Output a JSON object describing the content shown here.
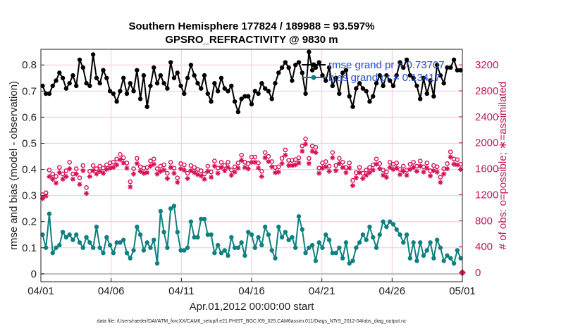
{
  "chart_data": {
    "type": "line",
    "title": [
      "Southern Hemisphere 177824 / 189988 = 93.597%",
      "GPSRO_REFRACTIVITY @ 9830 m"
    ],
    "xlabel": "Apr.01,2012 00:00:00 start",
    "ylabel": "rmse and bias (model - observation)",
    "y2label": "# of obs: o=possible; ∗=assimilated",
    "footnote": "data file: /Users/raeder/DAI/ATM_forcXX/CAM6_setup/f.e21.FHIST_BGC.f09_025.CAM6assim.011/Diags_NTrS_2012-04/obs_diag_output.nc",
    "x_range": [
      0,
      30
    ],
    "x_ticks": [
      0,
      5,
      10,
      15,
      20,
      25,
      30
    ],
    "x_tick_labels": [
      "04/01",
      "04/06",
      "04/11",
      "04/16",
      "04/21",
      "04/26",
      "05/01"
    ],
    "ylim": [
      -0.03,
      0.86
    ],
    "y_ticks": [
      0,
      0.1,
      0.2,
      0.3,
      0.4,
      0.5,
      0.6,
      0.7,
      0.8
    ],
    "y_tick_labels": [
      "0",
      "0.1",
      "0.2",
      "0.3",
      "0.4",
      "0.5",
      "0.6",
      "0.7",
      "0.8"
    ],
    "y2lim": [
      -140,
      3440
    ],
    "y2_ticks": [
      0,
      400,
      800,
      1200,
      1600,
      2000,
      2400,
      2800,
      3200
    ],
    "y2_tick_labels": [
      "0",
      "400",
      "800",
      "1200",
      "1600",
      "2000",
      "2400",
      "2800",
      "3200"
    ],
    "grid": true,
    "legend": {
      "position": "top-right",
      "entries": [
        "rmse grand pr = 0.73707",
        "bias grand pr = 0.13417"
      ]
    },
    "colors": {
      "rmse": "#000000",
      "bias": "#0f8080",
      "obs": "#d6105a",
      "grid": "#f2c8d8",
      "zero": "#bbbbbb"
    },
    "series": [
      {
        "name": "rmse",
        "axis": "left",
        "values": [
          0.72,
          0.69,
          0.69,
          0.72,
          0.74,
          0.77,
          0.75,
          0.71,
          0.73,
          0.76,
          0.72,
          0.82,
          0.79,
          0.73,
          0.72,
          0.84,
          0.75,
          0.73,
          0.78,
          0.75,
          0.7,
          0.69,
          0.66,
          0.7,
          0.75,
          0.69,
          0.73,
          0.7,
          0.78,
          0.67,
          0.76,
          0.64,
          0.72,
          0.79,
          0.73,
          0.76,
          0.73,
          0.71,
          0.81,
          0.75,
          0.77,
          0.72,
          0.69,
          0.75,
          0.8,
          0.76,
          0.73,
          0.71,
          0.76,
          0.69,
          0.66,
          0.73,
          0.7,
          0.75,
          0.71,
          0.7,
          0.72,
          0.66,
          0.62,
          0.67,
          0.68,
          0.68,
          0.65,
          0.7,
          0.69,
          0.73,
          0.71,
          0.7,
          0.67,
          0.73,
          0.77,
          0.79,
          0.81,
          0.79,
          0.74,
          0.8,
          0.81,
          0.77,
          0.69,
          0.85,
          0.78,
          0.79,
          0.81,
          0.76,
          0.74,
          0.79,
          0.72,
          0.75,
          0.69,
          0.77,
          0.78,
          0.68,
          0.64,
          0.71,
          0.73,
          0.71,
          0.7,
          0.66,
          0.68,
          0.73,
          0.76,
          0.72,
          0.76,
          0.74,
          0.72,
          0.76,
          0.81,
          0.79,
          0.82,
          0.76,
          0.75,
          0.72,
          0.67,
          0.75,
          0.69,
          0.74,
          0.68,
          0.8,
          0.76,
          0.73,
          0.79,
          0.79,
          0.82,
          0.78,
          0.78
        ]
      },
      {
        "name": "bias",
        "axis": "left",
        "values": [
          0.15,
          0.1,
          0.23,
          0.08,
          0.1,
          0.11,
          0.16,
          0.14,
          0.15,
          0.13,
          0.15,
          0.12,
          0.1,
          0.14,
          0.12,
          0.1,
          0.18,
          0.1,
          0.08,
          0.14,
          0.11,
          0.08,
          0.12,
          0.12,
          0.13,
          0.08,
          0.06,
          0.09,
          0.18,
          0.15,
          0.09,
          0.12,
          0.1,
          0.13,
          0.04,
          0.24,
          0.16,
          0.1,
          0.25,
          0.26,
          0.16,
          0.09,
          0.09,
          0.1,
          0.2,
          0.14,
          0.14,
          0.21,
          0.21,
          0.15,
          0.15,
          0.08,
          0.11,
          0.08,
          0.09,
          0.07,
          0.14,
          0.1,
          0.1,
          0.12,
          0.07,
          0.16,
          0.15,
          0.1,
          0.14,
          0.11,
          0.18,
          0.15,
          0.09,
          0.06,
          0.18,
          0.14,
          0.16,
          0.13,
          0.14,
          0.1,
          0.22,
          0.17,
          0.08,
          0.1,
          0.11,
          0.05,
          0.12,
          0.1,
          0.15,
          0.13,
          0.08,
          0.08,
          0.1,
          0.06,
          0.12,
          0.04,
          0.05,
          0.1,
          0.12,
          0.15,
          0.13,
          0.18,
          0.14,
          0.1,
          0.15,
          0.2,
          0.18,
          0.2,
          0.19,
          0.17,
          0.15,
          0.12,
          0.15,
          0.06,
          0.12,
          0.05,
          0.12,
          0.07,
          0.09,
          0.12,
          0.06,
          0.13,
          0.1,
          0.05,
          0.07,
          0.06,
          0.04,
          0.09,
          0.06
        ]
      },
      {
        "name": "possible",
        "axis": "right",
        "marker": "o",
        "values": [
          1200,
          1230,
          1580,
          1520,
          1480,
          1620,
          1520,
          1570,
          1700,
          1520,
          1600,
          1460,
          1650,
          1310,
          1560,
          1650,
          1600,
          1640,
          1610,
          1660,
          1690,
          1700,
          1750,
          1820,
          1770,
          1690,
          1400,
          1600,
          1760,
          1630,
          1610,
          1620,
          1720,
          1750,
          1600,
          1640,
          1660,
          1530,
          1700,
          1610,
          1460,
          1680,
          1660,
          1530,
          1650,
          1620,
          1590,
          1570,
          1520,
          1640,
          1550,
          1720,
          1610,
          1700,
          1650,
          1700,
          1580,
          1630,
          1690,
          1810,
          1700,
          1680,
          1780,
          1780,
          1690,
          1560,
          1850,
          1790,
          1710,
          1620,
          1630,
          1760,
          1890,
          1730,
          1730,
          1740,
          1770,
          1950,
          2060,
          1760,
          1950,
          1930,
          1610,
          1690,
          1710,
          1640,
          1850,
          1650,
          1760,
          1700,
          1620,
          1690,
          1420,
          1540,
          1620,
          1530,
          1580,
          1620,
          1660,
          1750,
          1680,
          1580,
          1550,
          1700,
          1670,
          1690,
          1590,
          1640,
          1580,
          1670,
          1700,
          1640,
          1720,
          1630,
          1690,
          1570,
          1650,
          1630,
          1470,
          1600,
          1680,
          1860,
          1750,
          1740,
          1670
        ]
      },
      {
        "name": "assimilated",
        "axis": "right",
        "marker": "*",
        "values": [
          1140,
          1180,
          1480,
          1440,
          1380,
          1540,
          1440,
          1480,
          1600,
          1440,
          1520,
          1360,
          1570,
          1220,
          1480,
          1570,
          1520,
          1560,
          1530,
          1590,
          1610,
          1620,
          1660,
          1740,
          1690,
          1610,
          1320,
          1520,
          1680,
          1560,
          1530,
          1540,
          1640,
          1670,
          1520,
          1560,
          1580,
          1450,
          1620,
          1530,
          1390,
          1600,
          1580,
          1450,
          1570,
          1540,
          1510,
          1490,
          1440,
          1560,
          1470,
          1640,
          1530,
          1620,
          1570,
          1620,
          1500,
          1550,
          1610,
          1730,
          1620,
          1600,
          1700,
          1700,
          1610,
          1480,
          1770,
          1710,
          1630,
          1540,
          1550,
          1680,
          1810,
          1650,
          1650,
          1660,
          1690,
          1870,
          1980,
          1680,
          1870,
          1850,
          1530,
          1610,
          1630,
          1560,
          1770,
          1570,
          1680,
          1620,
          1540,
          1610,
          1340,
          1460,
          1540,
          1450,
          1500,
          1540,
          1580,
          1670,
          1600,
          1500,
          1470,
          1620,
          1590,
          1610,
          1510,
          1560,
          1500,
          1590,
          1620,
          1560,
          1640,
          1550,
          1610,
          1490,
          1570,
          1550,
          1390,
          1520,
          1600,
          1780,
          1670,
          1660,
          1590
        ]
      }
    ],
    "end_marker": {
      "name": "end-obs-marker",
      "x": 30,
      "value": 0
    }
  }
}
